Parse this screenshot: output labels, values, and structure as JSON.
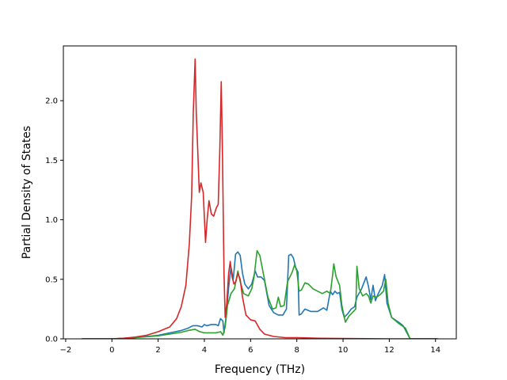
{
  "chart_data": {
    "type": "line",
    "title": "",
    "xlabel": "Frequency (THz)",
    "ylabel": "Partial Density of States",
    "xlim": [
      -2.1,
      14.9
    ],
    "ylim": [
      0.0,
      2.46
    ],
    "xticks": [
      -2,
      0,
      2,
      4,
      6,
      8,
      10,
      12,
      14
    ],
    "xtick_labels": [
      "−2",
      "0",
      "2",
      "4",
      "6",
      "8",
      "10",
      "12",
      "14"
    ],
    "yticks": [
      0.0,
      0.5,
      1.0,
      1.5,
      2.0
    ],
    "ytick_labels": [
      "0.0",
      "0.5",
      "1.0",
      "1.5",
      "2.0"
    ],
    "grid": false,
    "legend": "none",
    "series": [
      {
        "color": "#1f77b4",
        "points": [
          [
            -1.3,
            0
          ],
          [
            0,
            0
          ],
          [
            1,
            0.01
          ],
          [
            2,
            0.03
          ],
          [
            2.5,
            0.05
          ],
          [
            3,
            0.07
          ],
          [
            3.3,
            0.09
          ],
          [
            3.5,
            0.11
          ],
          [
            3.7,
            0.11
          ],
          [
            3.9,
            0.1
          ],
          [
            4.0,
            0.12
          ],
          [
            4.1,
            0.11
          ],
          [
            4.3,
            0.12
          ],
          [
            4.5,
            0.12
          ],
          [
            4.6,
            0.11
          ],
          [
            4.7,
            0.17
          ],
          [
            4.8,
            0.15
          ],
          [
            4.85,
            0.05
          ],
          [
            4.95,
            0.2
          ],
          [
            5.05,
            0.43
          ],
          [
            5.15,
            0.6
          ],
          [
            5.25,
            0.5
          ],
          [
            5.35,
            0.71
          ],
          [
            5.45,
            0.73
          ],
          [
            5.55,
            0.7
          ],
          [
            5.65,
            0.55
          ],
          [
            5.75,
            0.46
          ],
          [
            5.9,
            0.42
          ],
          [
            6.05,
            0.46
          ],
          [
            6.2,
            0.57
          ],
          [
            6.3,
            0.52
          ],
          [
            6.45,
            0.52
          ],
          [
            6.6,
            0.49
          ],
          [
            6.8,
            0.28
          ],
          [
            7.0,
            0.22
          ],
          [
            7.2,
            0.2
          ],
          [
            7.4,
            0.2
          ],
          [
            7.55,
            0.25
          ],
          [
            7.65,
            0.7
          ],
          [
            7.75,
            0.71
          ],
          [
            7.85,
            0.68
          ],
          [
            7.95,
            0.6
          ],
          [
            8.05,
            0.56
          ],
          [
            8.1,
            0.2
          ],
          [
            8.2,
            0.21
          ],
          [
            8.35,
            0.25
          ],
          [
            8.6,
            0.23
          ],
          [
            8.9,
            0.23
          ],
          [
            9.15,
            0.26
          ],
          [
            9.3,
            0.24
          ],
          [
            9.45,
            0.4
          ],
          [
            9.55,
            0.37
          ],
          [
            9.65,
            0.4
          ],
          [
            9.75,
            0.38
          ],
          [
            9.85,
            0.39
          ],
          [
            9.95,
            0.25
          ],
          [
            10.05,
            0.18
          ],
          [
            10.2,
            0.21
          ],
          [
            10.35,
            0.25
          ],
          [
            10.5,
            0.27
          ],
          [
            10.6,
            0.35
          ],
          [
            10.8,
            0.42
          ],
          [
            11.0,
            0.52
          ],
          [
            11.1,
            0.44
          ],
          [
            11.2,
            0.33
          ],
          [
            11.3,
            0.45
          ],
          [
            11.4,
            0.32
          ],
          [
            11.5,
            0.37
          ],
          [
            11.7,
            0.45
          ],
          [
            11.8,
            0.54
          ],
          [
            11.9,
            0.3
          ],
          [
            12.1,
            0.18
          ],
          [
            12.4,
            0.14
          ],
          [
            12.6,
            0.11
          ],
          [
            12.9,
            0.0
          ],
          [
            14.1,
            0.0
          ]
        ]
      },
      {
        "color": "#2ca02c",
        "points": [
          [
            -1.3,
            0
          ],
          [
            0,
            0
          ],
          [
            1,
            0.01
          ],
          [
            2,
            0.025
          ],
          [
            2.5,
            0.04
          ],
          [
            3,
            0.055
          ],
          [
            3.3,
            0.07
          ],
          [
            3.6,
            0.08
          ],
          [
            3.8,
            0.06
          ],
          [
            4.0,
            0.05
          ],
          [
            4.3,
            0.05
          ],
          [
            4.5,
            0.05
          ],
          [
            4.7,
            0.06
          ],
          [
            4.8,
            0.03
          ],
          [
            4.9,
            0.1
          ],
          [
            5.0,
            0.28
          ],
          [
            5.15,
            0.38
          ],
          [
            5.3,
            0.42
          ],
          [
            5.45,
            0.57
          ],
          [
            5.55,
            0.48
          ],
          [
            5.7,
            0.38
          ],
          [
            5.9,
            0.36
          ],
          [
            6.05,
            0.42
          ],
          [
            6.15,
            0.52
          ],
          [
            6.28,
            0.74
          ],
          [
            6.4,
            0.7
          ],
          [
            6.55,
            0.55
          ],
          [
            6.75,
            0.35
          ],
          [
            6.95,
            0.25
          ],
          [
            7.1,
            0.26
          ],
          [
            7.2,
            0.35
          ],
          [
            7.3,
            0.27
          ],
          [
            7.45,
            0.28
          ],
          [
            7.6,
            0.48
          ],
          [
            7.7,
            0.52
          ],
          [
            7.8,
            0.56
          ],
          [
            7.9,
            0.62
          ],
          [
            8.0,
            0.57
          ],
          [
            8.1,
            0.4
          ],
          [
            8.2,
            0.41
          ],
          [
            8.35,
            0.47
          ],
          [
            8.5,
            0.46
          ],
          [
            8.7,
            0.42
          ],
          [
            8.9,
            0.4
          ],
          [
            9.1,
            0.38
          ],
          [
            9.3,
            0.4
          ],
          [
            9.45,
            0.38
          ],
          [
            9.55,
            0.54
          ],
          [
            9.6,
            0.63
          ],
          [
            9.7,
            0.52
          ],
          [
            9.85,
            0.45
          ],
          [
            9.95,
            0.28
          ],
          [
            10.1,
            0.14
          ],
          [
            10.25,
            0.19
          ],
          [
            10.4,
            0.22
          ],
          [
            10.55,
            0.25
          ],
          [
            10.6,
            0.61
          ],
          [
            10.7,
            0.42
          ],
          [
            10.85,
            0.36
          ],
          [
            11.0,
            0.38
          ],
          [
            11.1,
            0.36
          ],
          [
            11.2,
            0.3
          ],
          [
            11.3,
            0.36
          ],
          [
            11.45,
            0.35
          ],
          [
            11.6,
            0.37
          ],
          [
            11.75,
            0.4
          ],
          [
            11.85,
            0.5
          ],
          [
            11.95,
            0.3
          ],
          [
            12.1,
            0.18
          ],
          [
            12.4,
            0.13
          ],
          [
            12.7,
            0.09
          ],
          [
            12.9,
            0.0
          ],
          [
            14.1,
            0.0
          ]
        ]
      },
      {
        "color": "#d62728",
        "points": [
          [
            -1.3,
            0
          ],
          [
            0,
            0
          ],
          [
            0.5,
            0.005
          ],
          [
            1,
            0.015
          ],
          [
            1.5,
            0.03
          ],
          [
            2,
            0.06
          ],
          [
            2.5,
            0.1
          ],
          [
            2.8,
            0.17
          ],
          [
            3.0,
            0.27
          ],
          [
            3.2,
            0.45
          ],
          [
            3.35,
            0.8
          ],
          [
            3.45,
            1.2
          ],
          [
            3.52,
            1.9
          ],
          [
            3.6,
            2.35
          ],
          [
            3.65,
            1.9
          ],
          [
            3.72,
            1.55
          ],
          [
            3.78,
            1.23
          ],
          [
            3.85,
            1.31
          ],
          [
            3.95,
            1.23
          ],
          [
            4.05,
            0.81
          ],
          [
            4.12,
            1.0
          ],
          [
            4.2,
            1.16
          ],
          [
            4.3,
            1.05
          ],
          [
            4.4,
            1.03
          ],
          [
            4.52,
            1.1
          ],
          [
            4.6,
            1.13
          ],
          [
            4.67,
            1.6
          ],
          [
            4.73,
            2.16
          ],
          [
            4.78,
            1.6
          ],
          [
            4.85,
            0.55
          ],
          [
            4.9,
            0.18
          ],
          [
            4.97,
            0.3
          ],
          [
            5.05,
            0.55
          ],
          [
            5.12,
            0.65
          ],
          [
            5.2,
            0.52
          ],
          [
            5.28,
            0.46
          ],
          [
            5.36,
            0.48
          ],
          [
            5.45,
            0.55
          ],
          [
            5.55,
            0.5
          ],
          [
            5.65,
            0.35
          ],
          [
            5.8,
            0.2
          ],
          [
            6.0,
            0.16
          ],
          [
            6.2,
            0.15
          ],
          [
            6.4,
            0.08
          ],
          [
            6.6,
            0.04
          ],
          [
            7.0,
            0.02
          ],
          [
            7.5,
            0.01
          ],
          [
            8.0,
            0.01
          ],
          [
            9.0,
            0.005
          ],
          [
            10.0,
            0.003
          ],
          [
            12.0,
            0.0
          ],
          [
            14.1,
            0.0
          ]
        ]
      }
    ]
  }
}
